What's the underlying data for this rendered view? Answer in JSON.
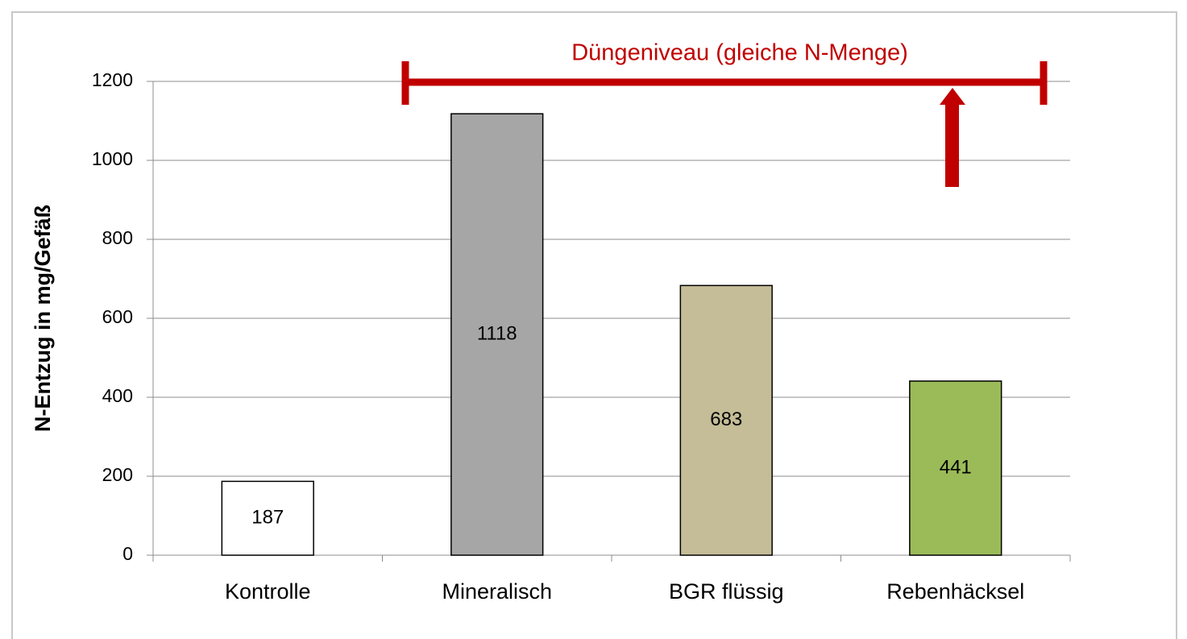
{
  "chart_data": {
    "type": "bar",
    "y_axis_label": "N-Entzug in mg/Gefäß",
    "annotation": "Düngeniveau (gleiche N-Menge)",
    "categories": [
      "Kontrolle",
      "Mineralisch",
      "BGR flüssig",
      "Rebenhäcksel"
    ],
    "values": [
      187,
      1118,
      683,
      441
    ],
    "colors": [
      "#ffffff",
      "#a6a6a6",
      "#c4bd97",
      "#9bbb59"
    ],
    "ylim": [
      0,
      1200
    ],
    "yticks": [
      0,
      200,
      400,
      600,
      800,
      1000,
      1200
    ],
    "grid": true
  }
}
